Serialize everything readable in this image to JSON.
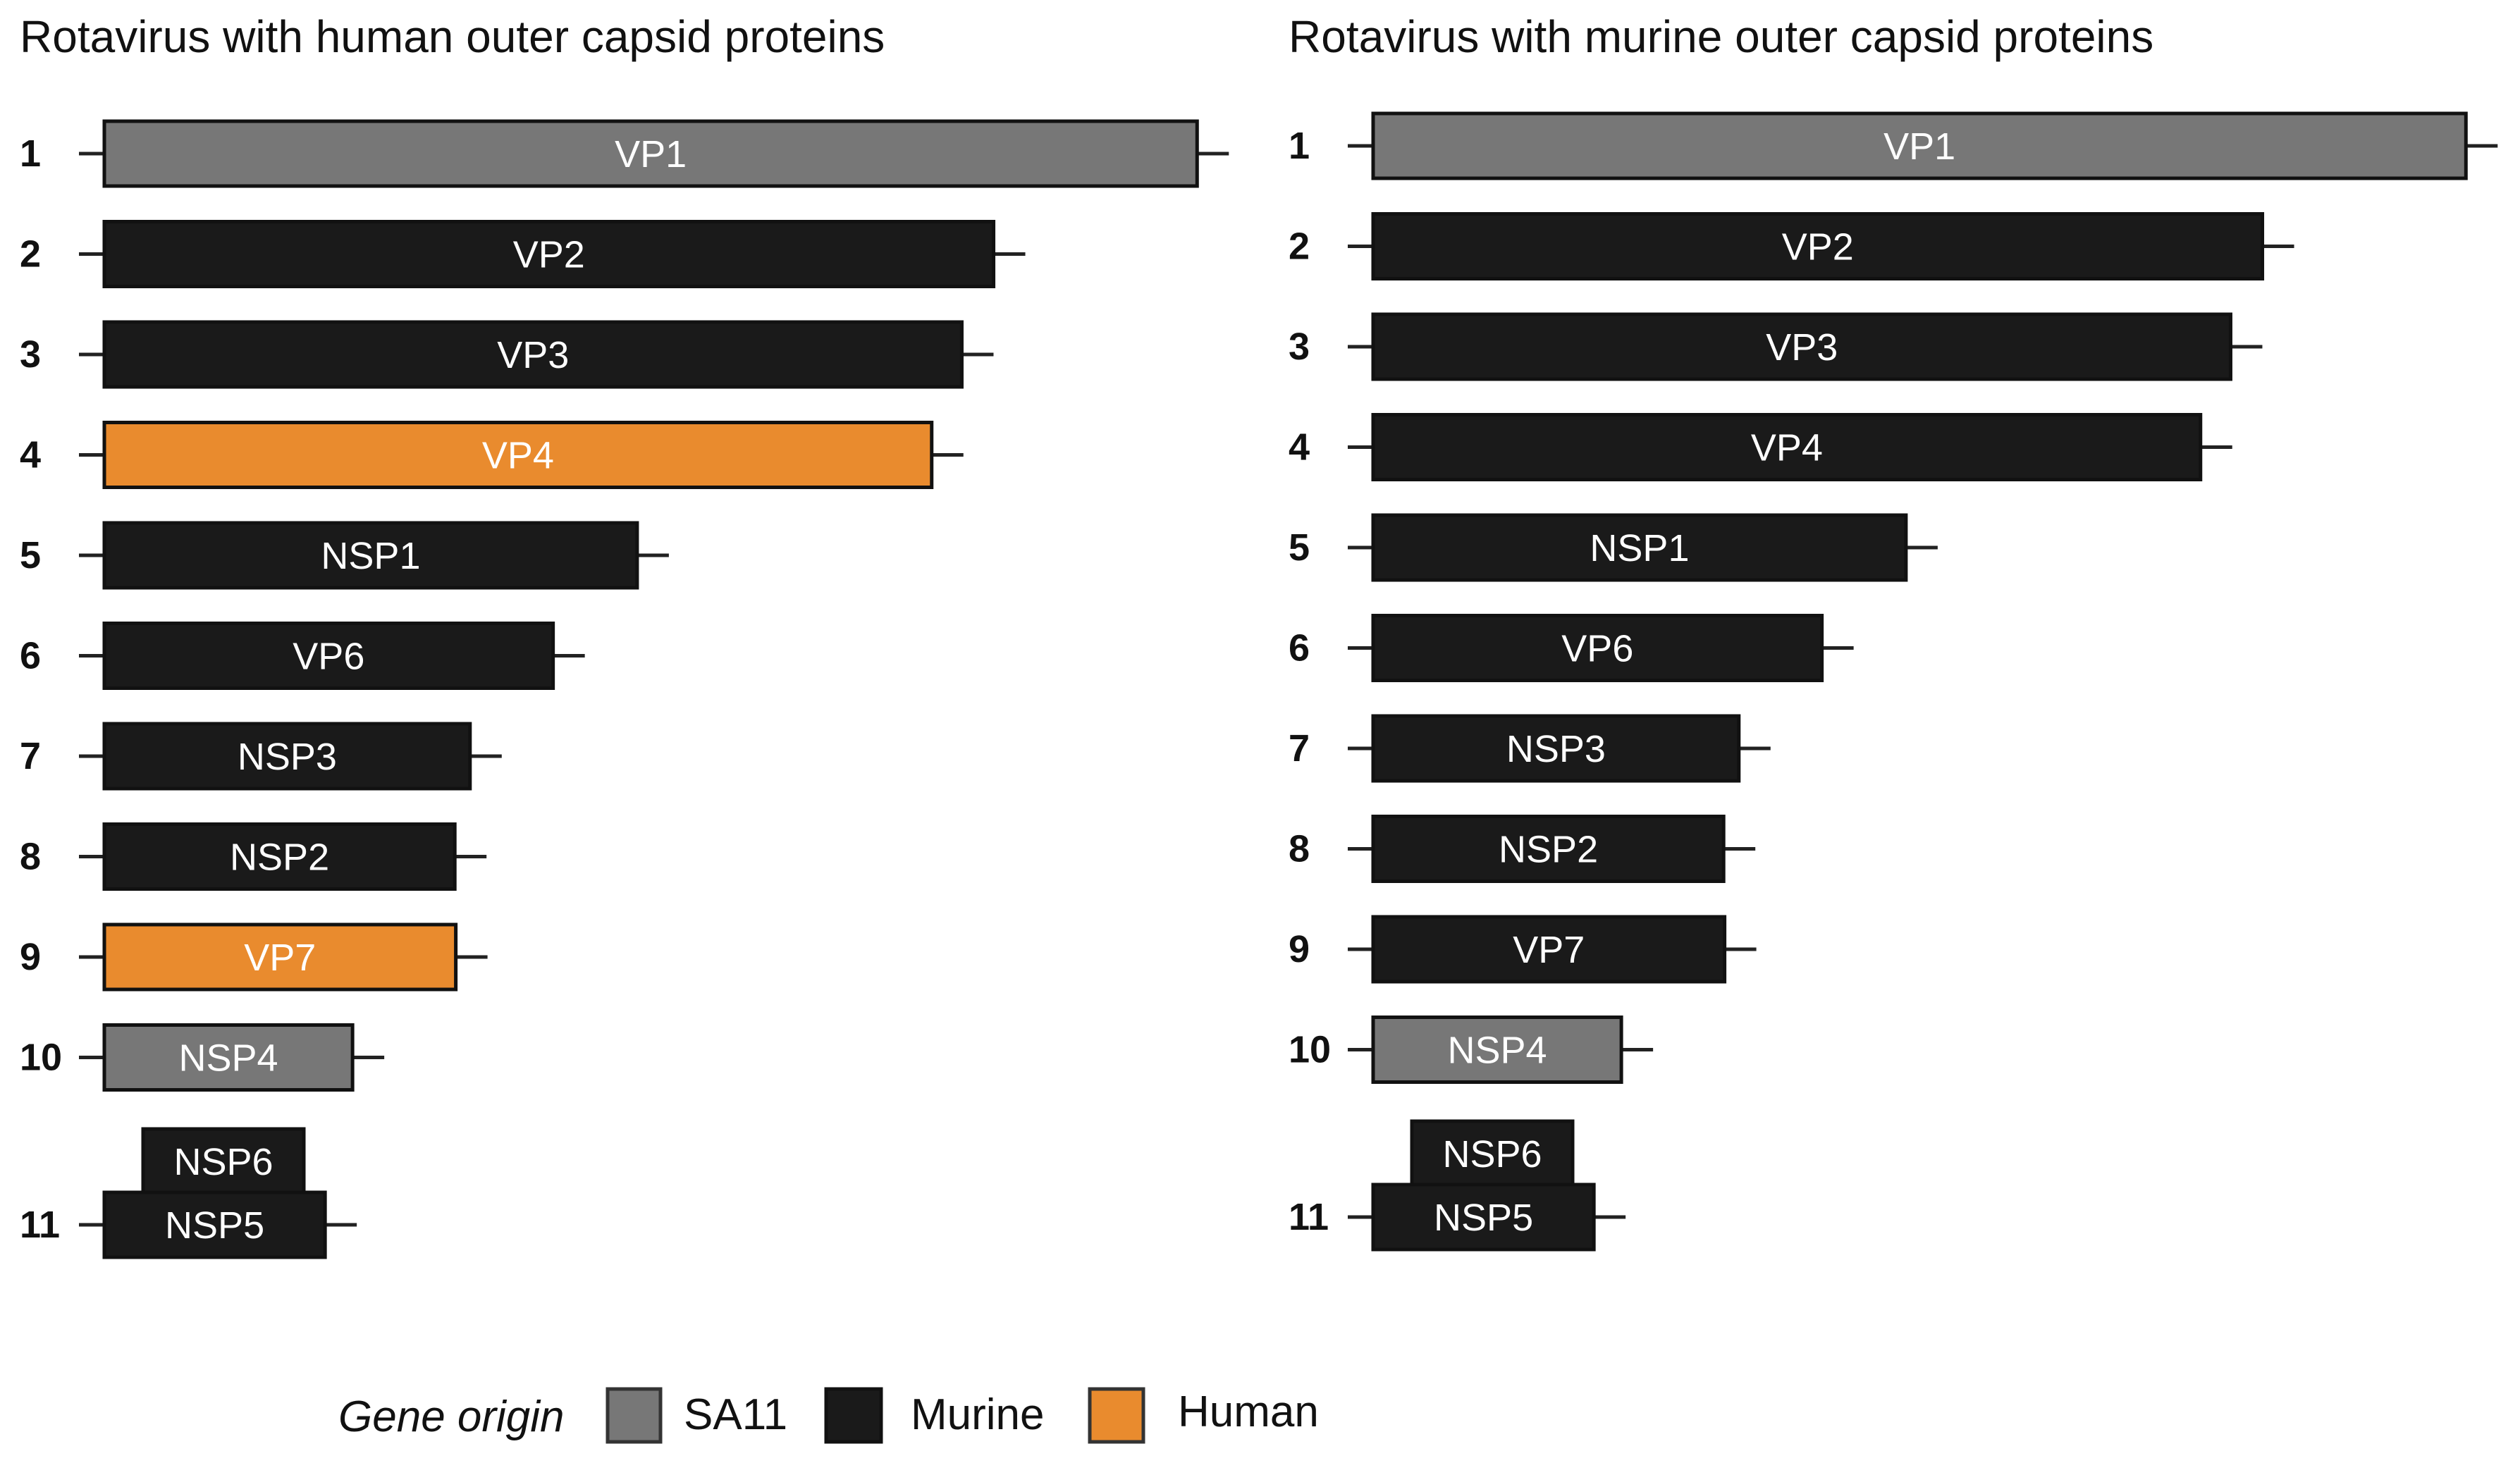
{
  "colors": {
    "sa11": "#777777",
    "murine": "#1a1a1a",
    "human": "#e98b2e",
    "line": "#222222",
    "label_text": "#ffffff"
  },
  "panels": [
    {
      "title": "Rotavirus with human outer capsid proteins",
      "segments": [
        {
          "number": "1",
          "genes": [
            {
              "label": "VP1",
              "origin": "sa11",
              "length": 3302
            }
          ]
        },
        {
          "number": "2",
          "genes": [
            {
              "label": "VP2",
              "origin": "murine",
              "length": 2687
            }
          ]
        },
        {
          "number": "3",
          "genes": [
            {
              "label": "VP3",
              "origin": "murine",
              "length": 2591
            }
          ]
        },
        {
          "number": "4",
          "genes": [
            {
              "label": "VP4",
              "origin": "human",
              "length": 2500
            }
          ]
        },
        {
          "number": "5",
          "genes": [
            {
              "label": "NSP1",
              "origin": "murine",
              "length": 1610
            }
          ]
        },
        {
          "number": "6",
          "genes": [
            {
              "label": "VP6",
              "origin": "murine",
              "length": 1356
            }
          ]
        },
        {
          "number": "7",
          "genes": [
            {
              "label": "NSP3",
              "origin": "murine",
              "length": 1105
            }
          ]
        },
        {
          "number": "8",
          "genes": [
            {
              "label": "NSP2",
              "origin": "murine",
              "length": 1059
            }
          ]
        },
        {
          "number": "9",
          "genes": [
            {
              "label": "VP7",
              "origin": "human",
              "length": 1062
            }
          ]
        },
        {
          "number": "10",
          "genes": [
            {
              "label": "NSP4",
              "origin": "sa11",
              "length": 750
            }
          ]
        },
        {
          "number": "11",
          "genes": [
            {
              "label": "NSP6",
              "origin": "murine"
            },
            {
              "label": "NSP5",
              "origin": "murine",
              "length": 667
            }
          ]
        }
      ]
    },
    {
      "title": "Rotavirus with murine outer capsid proteins",
      "segments": [
        {
          "number": "1",
          "genes": [
            {
              "label": "VP1",
              "origin": "sa11",
              "length": 3302
            }
          ]
        },
        {
          "number": "2",
          "genes": [
            {
              "label": "VP2",
              "origin": "murine",
              "length": 2687
            }
          ]
        },
        {
          "number": "3",
          "genes": [
            {
              "label": "VP3",
              "origin": "murine",
              "length": 2591
            }
          ]
        },
        {
          "number": "4",
          "genes": [
            {
              "label": "VP4",
              "origin": "murine",
              "length": 2500
            }
          ]
        },
        {
          "number": "5",
          "genes": [
            {
              "label": "NSP1",
              "origin": "murine",
              "length": 1610
            }
          ]
        },
        {
          "number": "6",
          "genes": [
            {
              "label": "VP6",
              "origin": "murine",
              "length": 1356
            }
          ]
        },
        {
          "number": "7",
          "genes": [
            {
              "label": "NSP3",
              "origin": "murine",
              "length": 1105
            }
          ]
        },
        {
          "number": "8",
          "genes": [
            {
              "label": "NSP2",
              "origin": "murine",
              "length": 1059
            }
          ]
        },
        {
          "number": "9",
          "genes": [
            {
              "label": "VP7",
              "origin": "murine",
              "length": 1062
            }
          ]
        },
        {
          "number": "10",
          "genes": [
            {
              "label": "NSP4",
              "origin": "sa11",
              "length": 750
            }
          ]
        },
        {
          "number": "11",
          "genes": [
            {
              "label": "NSP6",
              "origin": "murine"
            },
            {
              "label": "NSP5",
              "origin": "murine",
              "length": 667
            }
          ]
        }
      ]
    }
  ],
  "legend": {
    "title": "Gene origin",
    "items": [
      {
        "key": "sa11",
        "label": "SA11"
      },
      {
        "key": "murine",
        "label": "Murine"
      },
      {
        "key": "human",
        "label": "Human"
      }
    ]
  }
}
